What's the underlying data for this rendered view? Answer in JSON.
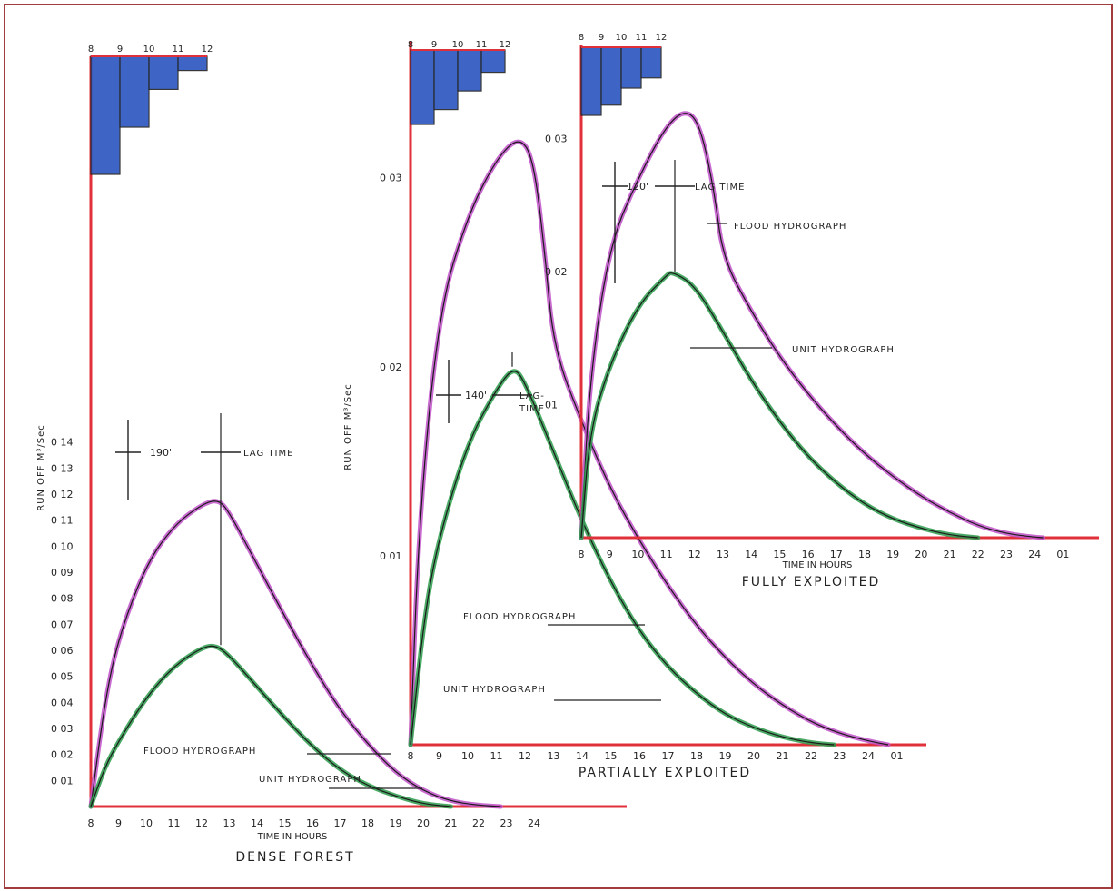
{
  "chart_data": [
    {
      "type": "line",
      "title": "DENSE FOREST",
      "xlabel": "TIME IN HOURS",
      "ylabel": "RUN OFF M³/Sec",
      "x_ticks": [
        "8",
        "9",
        "10",
        "11",
        "12",
        "13",
        "14",
        "15",
        "16",
        "17",
        "18",
        "19",
        "20",
        "21",
        "22",
        "23",
        "24"
      ],
      "y_ticks": [
        "0 01",
        "0 02",
        "0 03",
        "0 04",
        "0 05",
        "0 06",
        "0 07",
        "0 08",
        "0 09",
        "0 10",
        "0 11",
        "0 12",
        "0 13",
        "0 14"
      ],
      "xlim": [
        8,
        24.5
      ],
      "ylim": [
        0,
        0.15
      ],
      "lag_label": "190'",
      "lag_time_label": "LAG TIME",
      "hyetograph": {
        "ticks": [
          "8",
          "9",
          "10",
          "11",
          "12"
        ],
        "bars": [
          [
            8,
            9,
            1.0
          ],
          [
            9,
            10,
            0.6
          ],
          [
            10,
            11,
            0.28
          ],
          [
            11,
            12,
            0.12
          ]
        ]
      },
      "series": [
        {
          "name": "FLOOD HYDROGRAPH",
          "color": "#c050c8",
          "x": [
            8,
            8.5,
            9,
            10,
            11,
            12,
            12.6,
            13,
            14,
            15,
            16,
            17,
            18,
            19,
            20,
            21,
            22,
            22.8
          ],
          "y": [
            0,
            0.04,
            0.065,
            0.093,
            0.108,
            0.116,
            0.118,
            0.113,
            0.093,
            0.073,
            0.054,
            0.037,
            0.024,
            0.013,
            0.006,
            0.002,
            0.0005,
            0
          ]
        },
        {
          "name": "UNIT HYDROGRAPH",
          "color": "#2a9a4a",
          "x": [
            8,
            8.5,
            9,
            10,
            11,
            12,
            12.5,
            13,
            14,
            15,
            16,
            17,
            18,
            19,
            20,
            21
          ],
          "y": [
            0,
            0.015,
            0.025,
            0.042,
            0.054,
            0.061,
            0.062,
            0.058,
            0.046,
            0.034,
            0.023,
            0.014,
            0.008,
            0.004,
            0.001,
            0
          ]
        }
      ]
    },
    {
      "type": "line",
      "title": "PARTIALLY EXPLOITED",
      "xlabel": "",
      "ylabel": "RUN OFF M³/Sec",
      "x_ticks": [
        "8",
        "9",
        "10",
        "11",
        "12",
        "13",
        "14",
        "15",
        "16",
        "17",
        "18",
        "19",
        "20",
        "21",
        "22",
        "23",
        "24",
        "01"
      ],
      "y_ticks": [
        "0 01",
        "0 02",
        "0 03"
      ],
      "xlim": [
        8,
        25.3
      ],
      "ylim": [
        0,
        0.037
      ],
      "lag_label": "140'",
      "lag_time_label": "LAG-\nTIME",
      "hyetograph": {
        "ticks": [
          "8",
          "9",
          "10",
          "11",
          "12"
        ],
        "bars": [
          [
            8,
            9,
            1.0
          ],
          [
            9,
            10,
            0.8
          ],
          [
            10,
            11,
            0.55
          ],
          [
            11,
            12,
            0.3
          ]
        ]
      },
      "series": [
        {
          "name": "FLOOD HYDROGRAPH",
          "color": "#c050c8",
          "x": [
            8,
            8.3,
            9,
            10,
            11,
            11.8,
            12.3,
            12.7,
            13,
            14,
            15,
            16,
            17,
            18,
            19,
            20,
            21,
            22,
            23,
            24,
            24.7
          ],
          "y": [
            0,
            0.012,
            0.023,
            0.028,
            0.031,
            0.0322,
            0.031,
            0.026,
            0.021,
            0.017,
            0.0135,
            0.0108,
            0.0084,
            0.0063,
            0.0046,
            0.0032,
            0.0021,
            0.0012,
            0.0006,
            0.0002,
            0
          ]
        },
        {
          "name": "UNIT HYDROGRAPH",
          "color": "#2a9a4a",
          "x": [
            8,
            8.5,
            9,
            10,
            11,
            11.6,
            12,
            13,
            14,
            15,
            16,
            17,
            18,
            19,
            20,
            21,
            22,
            22.8
          ],
          "y": [
            0,
            0.007,
            0.011,
            0.016,
            0.0188,
            0.02,
            0.0192,
            0.0155,
            0.0118,
            0.0086,
            0.006,
            0.0041,
            0.0027,
            0.0016,
            0.0009,
            0.0004,
            0.0001,
            0
          ]
        }
      ]
    },
    {
      "type": "line",
      "title": "FULLY EXPLOITED",
      "xlabel": "TIME IN HOURS",
      "ylabel": "",
      "x_ticks": [
        "8",
        "9",
        "10",
        "11",
        "12",
        "13",
        "14",
        "15",
        "16",
        "17",
        "18",
        "19",
        "20",
        "21",
        "22",
        "23",
        "24",
        "01"
      ],
      "y_ticks": [
        "01",
        "0 02",
        "0 03"
      ],
      "xlim": [
        8,
        25.3
      ],
      "ylim": [
        0,
        0.037
      ],
      "lag_label": "120'",
      "lag_time_label": "LAG TIME",
      "hyetograph": {
        "ticks": [
          "8",
          "9",
          "10",
          "11",
          "12"
        ],
        "bars": [
          [
            8,
            9,
            1.0
          ],
          [
            9,
            10,
            0.85
          ],
          [
            10,
            11,
            0.6
          ],
          [
            11,
            12,
            0.45
          ]
        ]
      },
      "series": [
        {
          "name": "FLOOD HYDROGRAPH",
          "color": "#c050c8",
          "x": [
            8,
            8.3,
            9,
            10,
            11,
            11.7,
            12.2,
            12.7,
            13,
            14,
            15,
            16,
            17,
            18,
            19,
            20,
            21,
            22,
            23,
            24,
            24.3
          ],
          "y": [
            0,
            0.012,
            0.022,
            0.027,
            0.031,
            0.0322,
            0.031,
            0.026,
            0.021,
            0.017,
            0.0136,
            0.0108,
            0.0084,
            0.0063,
            0.0046,
            0.0031,
            0.0019,
            0.0009,
            0.0003,
            5e-05,
            0
          ]
        },
        {
          "name": "UNIT HYDROGRAPH",
          "color": "#2a9a4a",
          "x": [
            8,
            8.3,
            9,
            10,
            11,
            11.2,
            12,
            13,
            14,
            15,
            16,
            17,
            18,
            19,
            20,
            21,
            22
          ],
          "y": [
            0,
            0.008,
            0.013,
            0.0175,
            0.0197,
            0.02,
            0.019,
            0.0155,
            0.0118,
            0.0087,
            0.0061,
            0.0041,
            0.0025,
            0.0014,
            0.0007,
            0.0002,
            0
          ]
        }
      ]
    }
  ]
}
